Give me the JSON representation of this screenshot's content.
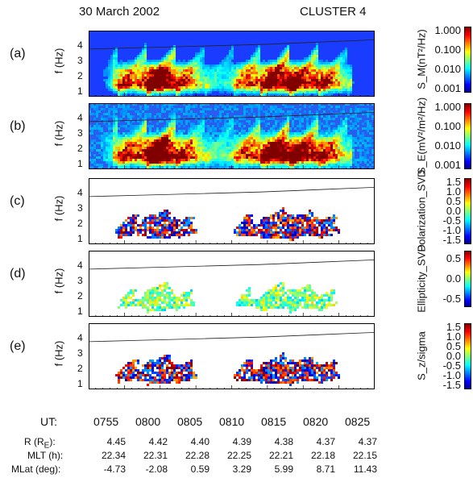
{
  "header": {
    "date": "30 March 2002",
    "spacecraft": "CLUSTER 4"
  },
  "chart_data": [
    {
      "type": "heatmap",
      "panel": "(a)",
      "ylabel": "f (Hz)",
      "yticks": [
        "1",
        "2",
        "3",
        "4"
      ],
      "ylim": [
        0.7,
        5.0
      ],
      "colorbar": {
        "label": "S_M(nT²/Hz)",
        "ticks": [
          "1.000",
          "0.100",
          "0.010",
          "0.001"
        ],
        "scale": "log"
      }
    },
    {
      "type": "heatmap",
      "panel": "(b)",
      "ylabel": "f (Hz)",
      "yticks": [
        "1",
        "2",
        "3",
        "4"
      ],
      "ylim": [
        0.7,
        5.0
      ],
      "colorbar": {
        "label": "S_E(mV²/m²/Hz)",
        "ticks": [
          "1.000",
          "0.100",
          "0.010",
          "0.001"
        ],
        "scale": "log"
      }
    },
    {
      "type": "heatmap",
      "panel": "(c)",
      "ylabel": "f (Hz)",
      "yticks": [
        "1",
        "2",
        "3",
        "4"
      ],
      "ylim": [
        0.7,
        5.0
      ],
      "colorbar": {
        "label": "Polarization_SVD",
        "ticks": [
          "1.5",
          "1.0",
          "0.5",
          "0.0",
          "-0.5",
          "-1.0",
          "-1.5"
        ],
        "range": [
          -1.5,
          1.5
        ]
      }
    },
    {
      "type": "heatmap",
      "panel": "(d)",
      "ylabel": "f (Hz)",
      "yticks": [
        "1",
        "2",
        "3",
        "4"
      ],
      "ylim": [
        0.7,
        5.0
      ],
      "colorbar": {
        "label": "Ellipticity_SVD",
        "ticks": [
          "0.5",
          "0.0",
          "-0.5"
        ],
        "range": [
          -0.75,
          0.75
        ]
      }
    },
    {
      "type": "heatmap",
      "panel": "(e)",
      "ylabel": "f (Hz)",
      "yticks": [
        "1",
        "2",
        "3",
        "4"
      ],
      "ylim": [
        0.7,
        5.0
      ],
      "colorbar": {
        "label": "S_z/sigma",
        "ticks": [
          "1.5",
          "1.0",
          "0.5",
          "0.0",
          "-0.5",
          "-1.0",
          "-1.5"
        ],
        "range": [
          -1.5,
          1.5
        ]
      }
    }
  ],
  "gyro_line_hz": [
    3.8,
    3.9,
    4.0,
    4.1,
    4.25,
    4.4
  ],
  "footer": {
    "ut_label": "UT:",
    "ut_ticks": [
      "0755",
      "0800",
      "0805",
      "0810",
      "0815",
      "0820",
      "0825"
    ],
    "rows": [
      {
        "label": "R (R",
        "sub": "E",
        "tail": "):",
        "values": [
          "4.45",
          "4.42",
          "4.40",
          "4.39",
          "4.38",
          "4.37",
          "4.37"
        ]
      },
      {
        "label": "MLT (h):",
        "values": [
          "22.34",
          "22.31",
          "22.28",
          "22.25",
          "22.21",
          "22.18",
          "22.15"
        ]
      },
      {
        "label": "MLat (deg):",
        "values": [
          "-4.73",
          "-2.08",
          "0.59",
          "3.29",
          "5.99",
          "8.71",
          "11.43"
        ]
      }
    ]
  }
}
